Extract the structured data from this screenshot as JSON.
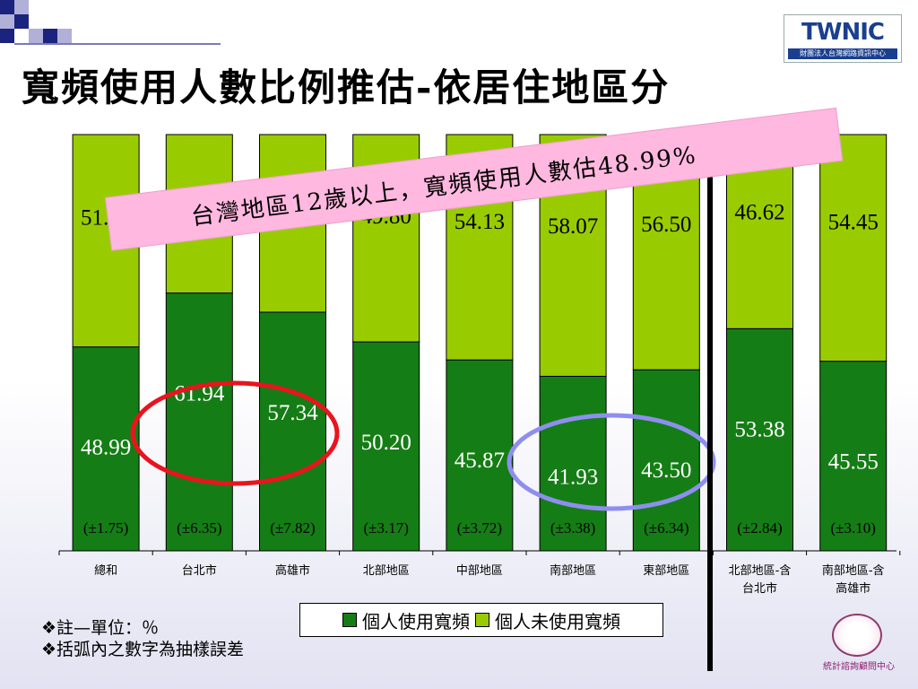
{
  "title": "寬頻使用人數比例推估-依居住地區分",
  "logo_top": {
    "brand": "TWNIC",
    "caption": "財團法人台灣網路資訊中心"
  },
  "banner": "台灣地區12歲以上，寬頻使用人數估48.99%",
  "colors": {
    "used": "#157d15",
    "unused": "#99cc00",
    "highlight_red": "#e8141e",
    "highlight_blue": "#8e8ef0",
    "banner_bg": "#ffb8e0"
  },
  "chart_data": {
    "type": "bar",
    "stacked": true,
    "categories": [
      "總和",
      "台北市",
      "高雄市",
      "北部地區",
      "中部地區",
      "南部地區",
      "東部地區",
      "北部地區-含台北市",
      "南部地區-含高雄市"
    ],
    "series": [
      {
        "name": "個人使用寬頻",
        "values": [
          48.99,
          61.94,
          57.34,
          50.2,
          45.87,
          41.93,
          43.5,
          53.38,
          45.55
        ]
      },
      {
        "name": "個人未使用寬頻",
        "values": [
          51.01,
          38.06,
          42.66,
          49.8,
          54.13,
          58.07,
          56.5,
          46.62,
          54.45
        ]
      }
    ],
    "errors": [
      "(±1.75)",
      "(±6.35)",
      "(±7.82)",
      "(±3.17)",
      "(±3.72)",
      "(±3.38)",
      "(±6.34)",
      "(±2.84)",
      "(±3.10)"
    ],
    "ylim": [
      0,
      100
    ],
    "unit": "%",
    "legend": "bottom"
  },
  "notes": [
    "❖註—單位：％",
    "❖括弧內之數字為抽樣誤差"
  ],
  "logo_bottom": {
    "caption": "統計諮詢顧問中心"
  }
}
